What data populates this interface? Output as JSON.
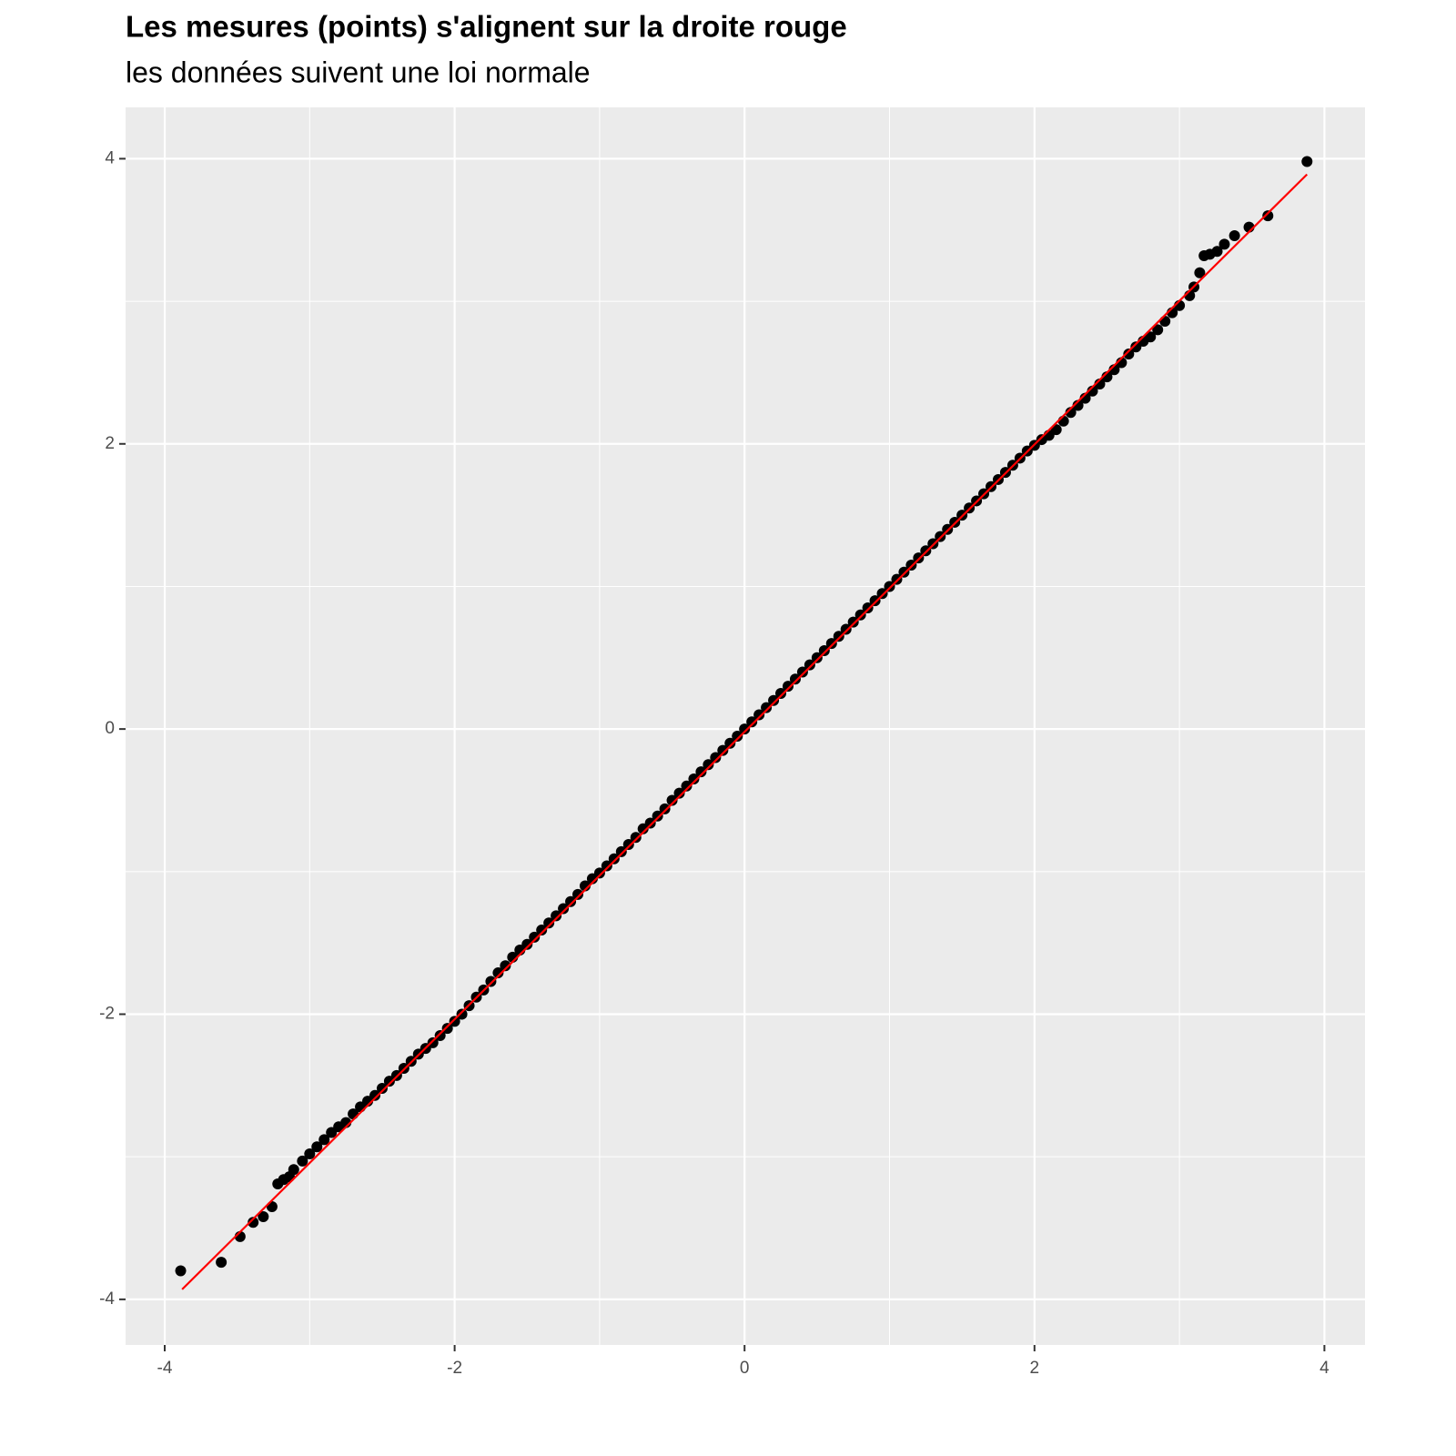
{
  "chart_data": {
    "type": "scatter",
    "title": "Les mesures (points) s'alignent sur la droite rouge",
    "subtitle": "les données suivent une loi normale",
    "color": "#000000",
    "x": [
      -3.89,
      -3.61,
      -3.48,
      -3.39,
      -3.32,
      -3.26,
      -3.22,
      -3.18,
      -3.14,
      -3.11,
      -3.05,
      -3,
      -2.95,
      -2.9,
      -2.85,
      -2.8,
      -2.75,
      -2.7,
      -2.65,
      -2.6,
      -2.55,
      -2.5,
      -2.45,
      -2.4,
      -2.35,
      -2.3,
      -2.25,
      -2.2,
      -2.15,
      -2.1,
      -2.05,
      -2,
      -1.95,
      -1.9,
      -1.85,
      -1.8,
      -1.75,
      -1.7,
      -1.65,
      -1.6,
      -1.55,
      -1.5,
      -1.45,
      -1.4,
      -1.35,
      -1.3,
      -1.25,
      -1.2,
      -1.15,
      -1.1,
      -1.05,
      -1,
      -0.95,
      -0.9,
      -0.85,
      -0.8,
      -0.75,
      -0.7,
      -0.65,
      -0.6,
      -0.55,
      -0.5,
      -0.45,
      -0.4,
      -0.35,
      -0.3,
      -0.25,
      -0.2,
      -0.15,
      -0.1,
      -0.05,
      0,
      0.05,
      0.1,
      0.15,
      0.2,
      0.25,
      0.3,
      0.35,
      0.4,
      0.45,
      0.5,
      0.55,
      0.6,
      0.65,
      0.7,
      0.75,
      0.8,
      0.85,
      0.9,
      0.95,
      1,
      1.05,
      1.1,
      1.15,
      1.2,
      1.25,
      1.3,
      1.35,
      1.4,
      1.45,
      1.5,
      1.55,
      1.6,
      1.65,
      1.7,
      1.75,
      1.8,
      1.85,
      1.9,
      1.95,
      2,
      2.05,
      2.1,
      2.15,
      2.2,
      2.25,
      2.3,
      2.35,
      2.4,
      2.45,
      2.5,
      2.55,
      2.6,
      2.65,
      2.7,
      2.75,
      2.8,
      2.85,
      2.9,
      2.95,
      3,
      3.07,
      3.1,
      3.14,
      3.17,
      3.21,
      3.26,
      3.31,
      3.38,
      3.48,
      3.61,
      3.88
    ],
    "values": [
      -3.8,
      -3.74,
      -3.56,
      -3.46,
      -3.42,
      -3.35,
      -3.19,
      -3.16,
      -3.14,
      -3.09,
      -3.03,
      -2.98,
      -2.93,
      -2.88,
      -2.83,
      -2.79,
      -2.76,
      -2.7,
      -2.65,
      -2.61,
      -2.57,
      -2.52,
      -2.47,
      -2.43,
      -2.38,
      -2.33,
      -2.28,
      -2.24,
      -2.2,
      -2.15,
      -2.1,
      -2.05,
      -2,
      -1.94,
      -1.88,
      -1.83,
      -1.77,
      -1.71,
      -1.66,
      -1.6,
      -1.55,
      -1.51,
      -1.46,
      -1.41,
      -1.36,
      -1.31,
      -1.26,
      -1.21,
      -1.16,
      -1.1,
      -1.05,
      -1.01,
      -0.96,
      -0.91,
      -0.86,
      -0.81,
      -0.76,
      -0.7,
      -0.66,
      -0.61,
      -0.56,
      -0.5,
      -0.45,
      -0.4,
      -0.35,
      -0.3,
      -0.25,
      -0.2,
      -0.15,
      -0.1,
      -0.05,
      0,
      0.05,
      0.1,
      0.15,
      0.2,
      0.25,
      0.3,
      0.35,
      0.4,
      0.45,
      0.5,
      0.55,
      0.6,
      0.65,
      0.7,
      0.75,
      0.8,
      0.85,
      0.9,
      0.95,
      1,
      1.05,
      1.1,
      1.15,
      1.2,
      1.25,
      1.3,
      1.35,
      1.4,
      1.45,
      1.5,
      1.55,
      1.6,
      1.65,
      1.7,
      1.75,
      1.8,
      1.85,
      1.9,
      1.95,
      1.99,
      2.03,
      2.06,
      2.1,
      2.16,
      2.22,
      2.27,
      2.32,
      2.37,
      2.42,
      2.47,
      2.52,
      2.57,
      2.63,
      2.68,
      2.72,
      2.75,
      2.8,
      2.86,
      2.92,
      2.97,
      3.04,
      3.1,
      3.2,
      3.32,
      3.33,
      3.35,
      3.4,
      3.46,
      3.52,
      3.6,
      3.98
    ],
    "reference_line": {
      "x": [
        -3.88,
        3.88
      ],
      "values": [
        -3.93,
        3.89
      ],
      "color": "#ff0000"
    },
    "xlim": [
      -4.27,
      4.28
    ],
    "xticks": [
      -4,
      -2,
      0,
      2,
      4
    ],
    "ylim": [
      -4.32,
      4.36
    ],
    "yticks": [
      -4,
      -2,
      0,
      2,
      4
    ],
    "grid": true
  }
}
